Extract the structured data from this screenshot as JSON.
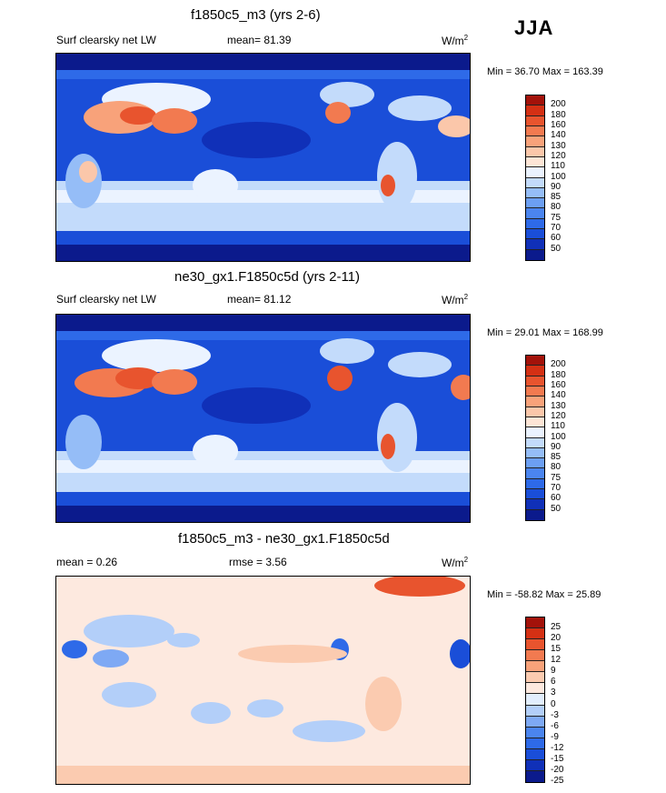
{
  "season": "JJA",
  "units": "W/m",
  "units_exp": "2",
  "colors": {
    "abs": [
      "#0b1a8c",
      "#1030b8",
      "#1a4ed8",
      "#2e6ae8",
      "#4b85ef",
      "#6c9ff3",
      "#95bdf7",
      "#c3dbfb",
      "#ebf3ff",
      "#fde5d6",
      "#fbc7aa",
      "#f8a27a",
      "#f27a50",
      "#e8542e",
      "#d43014",
      "#a3120a"
    ],
    "diff": [
      "#0b1a8c",
      "#1030b8",
      "#1a4ed8",
      "#2e6ae8",
      "#4b85ef",
      "#7ea9f4",
      "#b3cff9",
      "#e2eefd",
      "#fde9df",
      "#fbcbb0",
      "#f8a27a",
      "#f27a50",
      "#e8542e",
      "#d43014",
      "#a3120a"
    ]
  },
  "panels": [
    {
      "title": "f1850c5_m3 (yrs 2-6)",
      "left_label": "Surf clearsky net LW",
      "mean_label": "mean=",
      "mean_value": "81.39",
      "minmax": "Min =  36.70 Max = 163.39",
      "ticks": [
        "200",
        "180",
        "160",
        "140",
        "130",
        "120",
        "110",
        "100",
        "90",
        "85",
        "80",
        "75",
        "70",
        "60",
        "50"
      ]
    },
    {
      "title": "ne30_gx1.F1850c5d (yrs 2-11)",
      "left_label": "Surf clearsky net LW",
      "mean_label": "mean=",
      "mean_value": "81.12",
      "minmax": "Min =  29.01 Max = 168.99",
      "ticks": [
        "200",
        "180",
        "160",
        "140",
        "130",
        "120",
        "110",
        "100",
        "90",
        "85",
        "80",
        "75",
        "70",
        "60",
        "50"
      ]
    },
    {
      "title": "f1850c5_m3 - ne30_gx1.F1850c5d",
      "left_label": "mean =   0.26",
      "mean_label": "rmse =",
      "mean_value": "3.56",
      "minmax": "Min = -58.82 Max =  25.89",
      "ticks": [
        "25",
        "20",
        "15",
        "12",
        "9",
        "6",
        "3",
        "0",
        "-3",
        "-6",
        "-9",
        "-12",
        "-15",
        "-20",
        "-25"
      ]
    }
  ]
}
